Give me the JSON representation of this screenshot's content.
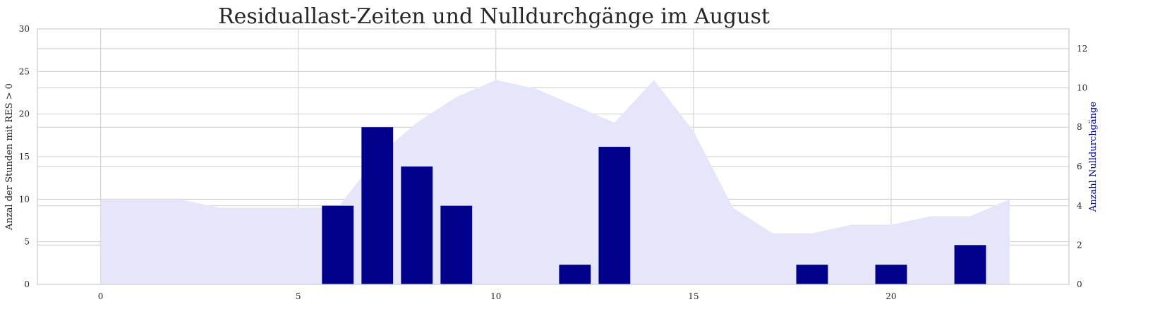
{
  "chart_data": {
    "type": "bar",
    "title": "Residuallast-Zeiten und Nulldurchgänge im August",
    "xlabel": "",
    "xlim": [
      -1.6,
      24.5
    ],
    "x_ticks": [
      0,
      5,
      10,
      15,
      20
    ],
    "left_axis": {
      "label": "Anzal der Stunden mit RES > 0",
      "ylim": [
        0,
        30
      ],
      "ticks": [
        0,
        5,
        10,
        15,
        20,
        25,
        30
      ]
    },
    "right_axis": {
      "label": "Anzahl Nulldurchgänge",
      "ylim": [
        0,
        13
      ],
      "ticks": [
        0,
        2,
        4,
        6,
        8,
        10,
        12
      ]
    },
    "grid": true,
    "series": [
      {
        "type": "area",
        "axis": "left",
        "color": "#e6e6fa",
        "x": [
          0,
          1,
          2,
          3,
          4,
          5,
          6,
          7,
          8,
          9,
          10,
          11,
          12,
          13,
          14,
          15,
          16,
          17,
          18,
          19,
          20,
          21,
          22,
          23
        ],
        "values": [
          10,
          10,
          10,
          9,
          9,
          9,
          9,
          15,
          19,
          22,
          24,
          23,
          21,
          19,
          24,
          18,
          9,
          6,
          6,
          7,
          7,
          8,
          8,
          10
        ]
      },
      {
        "type": "bar",
        "axis": "right",
        "color": "#00008b",
        "x": [
          0,
          1,
          2,
          3,
          4,
          5,
          6,
          7,
          8,
          9,
          10,
          11,
          12,
          13,
          14,
          15,
          16,
          17,
          18,
          19,
          20,
          21,
          22,
          23
        ],
        "values": [
          0,
          0,
          0,
          0,
          0,
          0,
          4,
          8,
          6,
          4,
          0,
          0,
          1,
          7,
          0,
          0,
          0,
          0,
          1,
          0,
          1,
          0,
          2,
          0
        ]
      }
    ]
  }
}
